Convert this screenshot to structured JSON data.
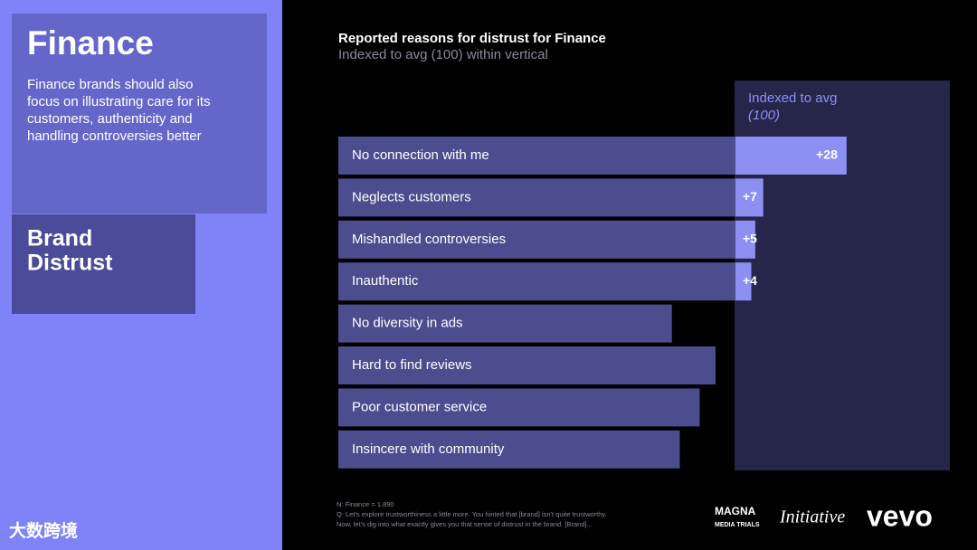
{
  "panel": {
    "heading": "Finance",
    "text": [
      "Finance brands should also",
      "focus on illustrating care for its",
      "customers, authenticity and",
      "handling controversies better"
    ],
    "section": [
      "Brand",
      "Distrust"
    ]
  },
  "chart_data": {
    "type": "bar",
    "orientation": "horizontal",
    "title": "Reported reasons for distrust for Finance",
    "subtitle": "Indexed to avg (100) within vertical",
    "annotation": [
      "Indexed to avg",
      "(100)"
    ],
    "categories": [
      "No connection with me",
      "Neglects customers",
      "Mishandled controversies",
      "Inauthentic",
      "No diversity in ads",
      "Hard to find reviews",
      "Poor customer service",
      "Insincere with community"
    ],
    "values": [
      28,
      7,
      5,
      4,
      -16,
      -5,
      -9,
      -14
    ],
    "value_labels": [
      "+28",
      "+7",
      "+5",
      "+4",
      null,
      null,
      null,
      null
    ],
    "color": "#4b4d8f",
    "highlight_color": "#8d8ff2",
    "xlim": [
      -100,
      54
    ]
  },
  "footnote": [
    "N: Finance = 1,890",
    "Q: Let's explore trustworthiness a little more. You hinted that [brand] isn't quite trustworthy.",
    "Now, let's dig into what exactly gives you that sense of distrust in the brand. [Brand]..."
  ],
  "logos": [
    "MAGNA",
    "MEDIA TRIALS",
    "Initiative",
    "vevo"
  ],
  "watermark": "大数跨境"
}
